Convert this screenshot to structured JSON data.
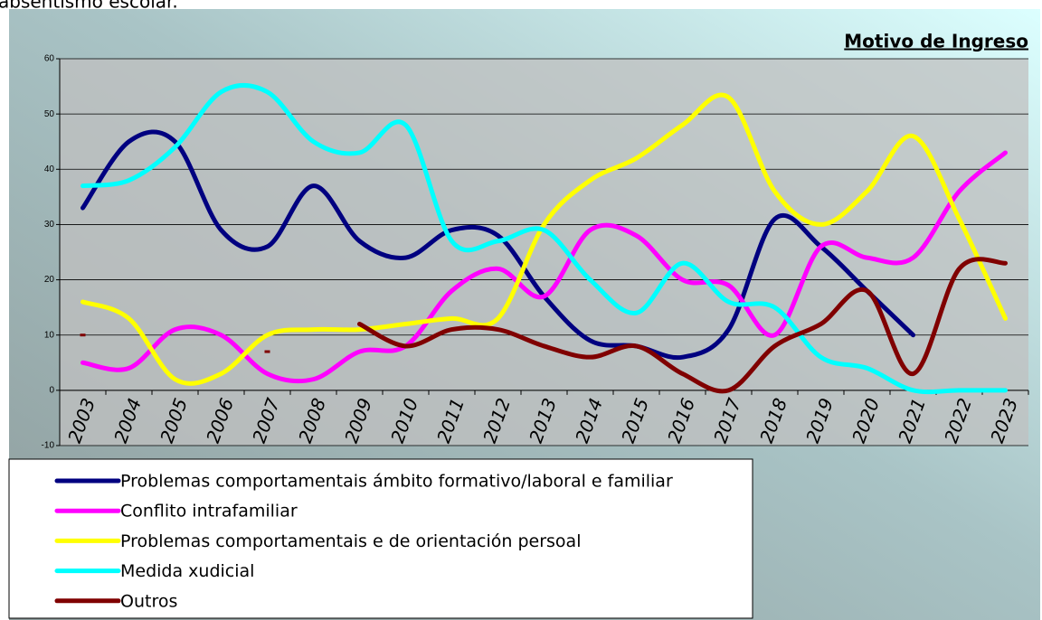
{
  "caption": "absentismo escolar.",
  "chart_data": {
    "type": "line",
    "title": "Motivo de Ingreso",
    "categories": [
      "2003",
      "2004",
      "2005",
      "2006",
      "2007",
      "2008",
      "2009",
      "2010",
      "2011",
      "2012",
      "2013",
      "2014",
      "2015",
      "2016",
      "2017",
      "2018",
      "2019",
      "2020",
      "2021",
      "2022",
      "2023"
    ],
    "series": [
      {
        "name": "Problemas comportamentais ámbito formativo/laboral e familiar",
        "color": "#000080",
        "values": [
          33,
          45,
          45,
          29,
          26,
          37,
          27,
          24,
          29,
          28,
          17,
          9,
          8,
          6,
          11,
          31,
          26,
          18,
          10,
          null,
          null
        ]
      },
      {
        "name": "Conflito intrafamiliar",
        "color": "#ff00ff",
        "values": [
          5,
          4,
          11,
          10,
          3,
          2,
          7,
          8,
          18,
          22,
          17,
          29,
          28,
          20,
          19,
          10,
          26,
          24,
          24,
          36,
          43
        ]
      },
      {
        "name": "Problemas comportamentais e de orientación persoal",
        "color": "#ffff00",
        "values": [
          16,
          13,
          2,
          3,
          10,
          11,
          11,
          12,
          13,
          13,
          30,
          38,
          42,
          48,
          53,
          36,
          30,
          36,
          46,
          31,
          13
        ]
      },
      {
        "name": "Medida xudicial",
        "color": "#00ffff",
        "values": [
          37,
          38,
          44,
          54,
          54,
          45,
          43,
          48,
          27,
          27,
          29,
          20,
          14,
          23,
          16,
          15,
          6,
          4,
          0,
          0,
          0
        ]
      },
      {
        "name": "Outros",
        "color": "#800000",
        "values": [
          10,
          null,
          null,
          null,
          7,
          null,
          12,
          8,
          11,
          11,
          8,
          6,
          8,
          3,
          0,
          8,
          12,
          18,
          3,
          22,
          23
        ]
      }
    ],
    "ylim": [
      -10,
      60
    ],
    "yticks": [
      -10,
      0,
      10,
      20,
      30,
      40,
      50,
      60
    ],
    "grid": true,
    "smooth": true
  }
}
